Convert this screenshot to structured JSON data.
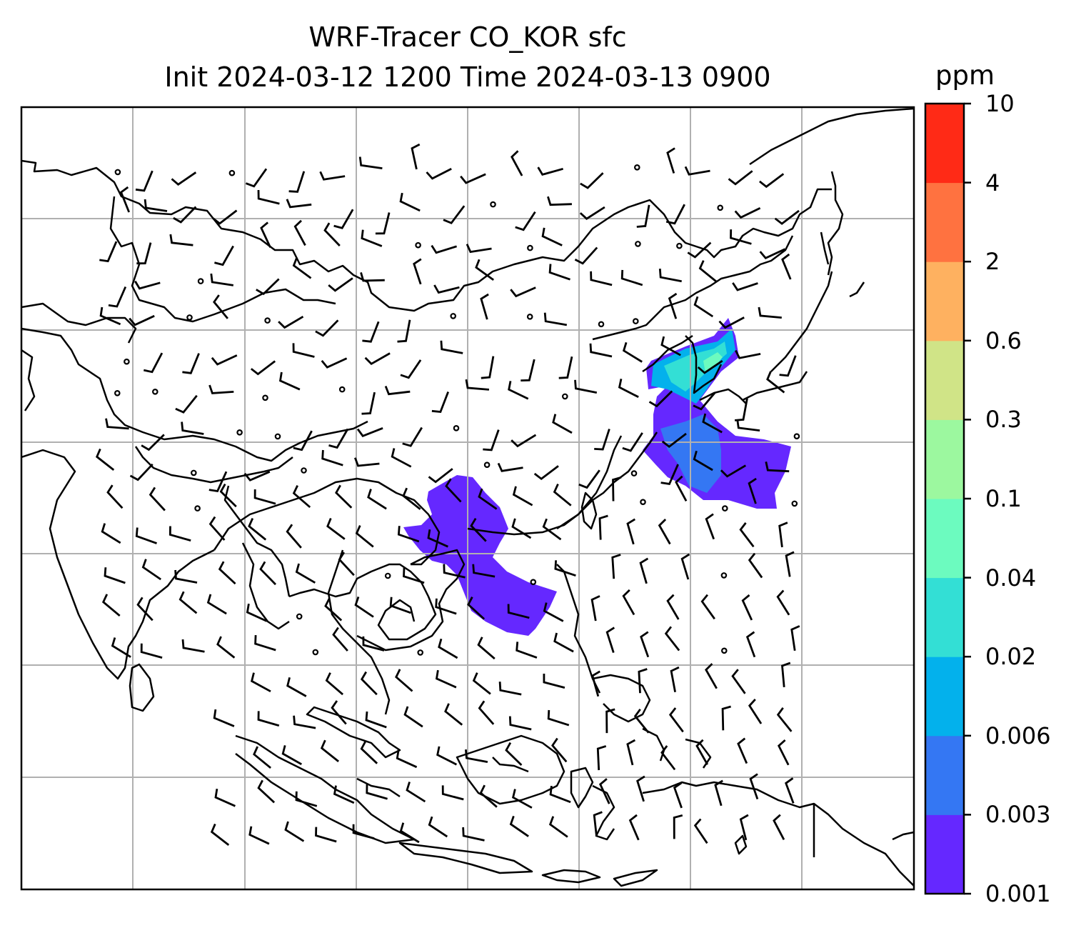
{
  "title": {
    "line1": "WRF-Tracer CO_KOR sfc",
    "line2": "Init 2024-03-12 1200 Time 2024-03-13 0900"
  },
  "colorbar": {
    "unit": "ppm",
    "levels": [
      "0.001",
      "0.003",
      "0.006",
      "0.02",
      "0.04",
      "0.1",
      "0.3",
      "0.6",
      "2",
      "4",
      "10"
    ],
    "colors": [
      "#6528ff",
      "#3477f3",
      "#03b1ec",
      "#33dfd5",
      "#6cfbbf",
      "#9cf89f",
      "#d0e487",
      "#feb160",
      "#ff7240",
      "#ff2a16"
    ]
  },
  "map": {
    "grid": true,
    "coastline_color": "#000000",
    "barb_color": "#000000",
    "grid_color": "#b0b0b0"
  }
}
